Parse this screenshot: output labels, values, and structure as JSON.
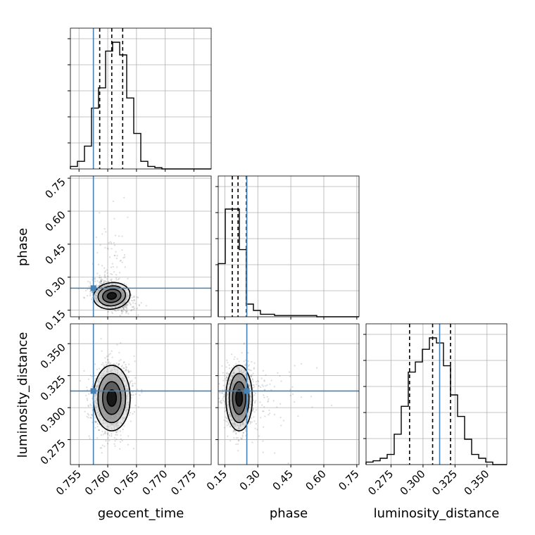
{
  "chart_data": {
    "type": "corner",
    "parameters": [
      {
        "name": "geocent_time",
        "range": [
          0.7535,
          0.778
        ],
        "ticks": [
          0.755,
          0.76,
          0.765,
          0.77,
          0.775
        ],
        "tick_labels": [
          "0.755",
          "0.760",
          "0.765",
          "0.770",
          "0.775"
        ],
        "truth": 0.7575,
        "quantiles": [
          0.7586,
          0.7607,
          0.7626
        ],
        "hist": [
          0.02,
          0.06,
          0.18,
          0.48,
          0.64,
          0.93,
          1.0,
          0.9,
          0.56,
          0.28,
          0.06,
          0.02,
          0.01,
          0.0,
          0.0,
          0.0,
          0.0,
          0.0,
          0.0,
          0.0
        ]
      },
      {
        "name": "phase",
        "range": [
          0.12,
          0.76
        ],
        "ticks": [
          0.15,
          0.3,
          0.45,
          0.6,
          0.75
        ],
        "tick_labels": [
          "0.15",
          "0.30",
          "0.45",
          "0.60",
          "0.75"
        ],
        "truth": 0.25,
        "quantiles": [
          0.184,
          0.21,
          0.248
        ],
        "hist": [
          0.42,
          0.85,
          0.85,
          0.53,
          0.1,
          0.05,
          0.02,
          0.02,
          0.01,
          0.01,
          0.01,
          0.01,
          0.01,
          0.01,
          0.0,
          0.0,
          0.0,
          0.0,
          0.0,
          0.0
        ]
      },
      {
        "name": "luminosity_distance",
        "range": [
          0.2555,
          0.3655
        ],
        "ticks": [
          0.275,
          0.3,
          0.325,
          0.35
        ],
        "tick_labels": [
          "0.275",
          "0.300",
          "0.325",
          "0.350"
        ],
        "truth": 0.313,
        "quantiles": [
          0.2895,
          0.3075,
          0.3215
        ],
        "hist": [
          0.02,
          0.03,
          0.05,
          0.08,
          0.24,
          0.46,
          0.73,
          0.81,
          0.91,
          1.0,
          0.96,
          0.78,
          0.55,
          0.38,
          0.2,
          0.08,
          0.05,
          0.02,
          0.0,
          0.0
        ]
      }
    ],
    "correlations": {
      "1_0": -0.45,
      "2_0": 0.0,
      "2_1": 0.0
    },
    "means": [
      0.7607,
      0.215,
      0.3075
    ],
    "sigmas": [
      0.0016,
      0.03,
      0.0128
    ],
    "contour_levels": [
      0.5,
      1.0,
      1.5,
      2.0
    ],
    "grid": true,
    "truth_color": "#4682b4",
    "contour_color": "#000000"
  }
}
